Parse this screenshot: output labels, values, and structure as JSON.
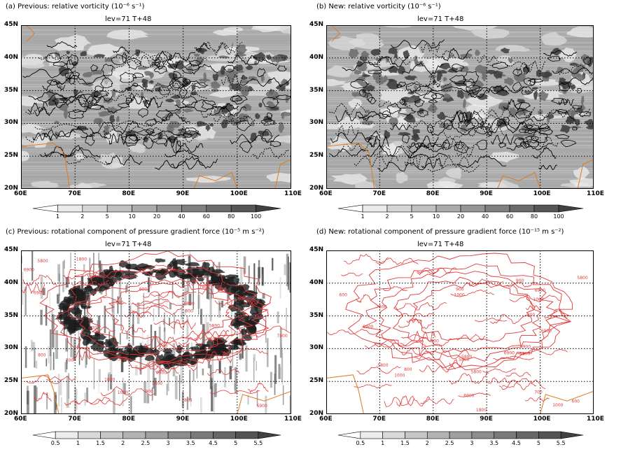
{
  "panels": [
    {
      "id": "a",
      "title": "(a) Previous: relative vorticity (10⁻⁶ s⁻¹)",
      "subtitle": "lev=71  T+48",
      "style": "vorticity",
      "colorbar": [
        "1",
        "2",
        "5",
        "10",
        "20",
        "40",
        "60",
        "80",
        "100"
      ]
    },
    {
      "id": "b",
      "title": "(b) New: relative vorticity (10⁻⁶ s⁻¹)",
      "subtitle": "lev=71  T+48",
      "style": "vorticity",
      "colorbar": [
        "1",
        "2",
        "5",
        "10",
        "20",
        "40",
        "60",
        "80",
        "100"
      ]
    },
    {
      "id": "c",
      "title": "(c) Previous: rotational component of pressure gradient force (10⁻⁵ m s⁻²)",
      "subtitle": "lev=71  T+48",
      "style": "pgf-prev",
      "colorbar": [
        "0.5",
        "1",
        "1.5",
        "2",
        "2.5",
        "3",
        "3.5",
        "4.5",
        "5",
        "5.5"
      ]
    },
    {
      "id": "d",
      "title": "(d) New: rotational component of pressure gradient force (10⁻¹⁵ m s⁻²)",
      "subtitle": "lev=71  T+48",
      "style": "pgf-new",
      "colorbar": [
        "0.5",
        "1",
        "1.5",
        "2",
        "2.5",
        "3",
        "3.5",
        "4.5",
        "5",
        "5.5"
      ]
    }
  ],
  "lat_labels": [
    "45N",
    "40N",
    "35N",
    "30N",
    "25N",
    "20N"
  ],
  "lon_labels": [
    "60E",
    "70E",
    "80E",
    "90E",
    "100E",
    "110E"
  ],
  "contour_labels": [
    "1000",
    "900",
    "800",
    "700",
    "600",
    "1800",
    "7800",
    "6900",
    "5800"
  ],
  "colors": {
    "terrain_contour": "#e03a3a",
    "coastline": "#e07b1a",
    "grid": "#000000"
  }
}
